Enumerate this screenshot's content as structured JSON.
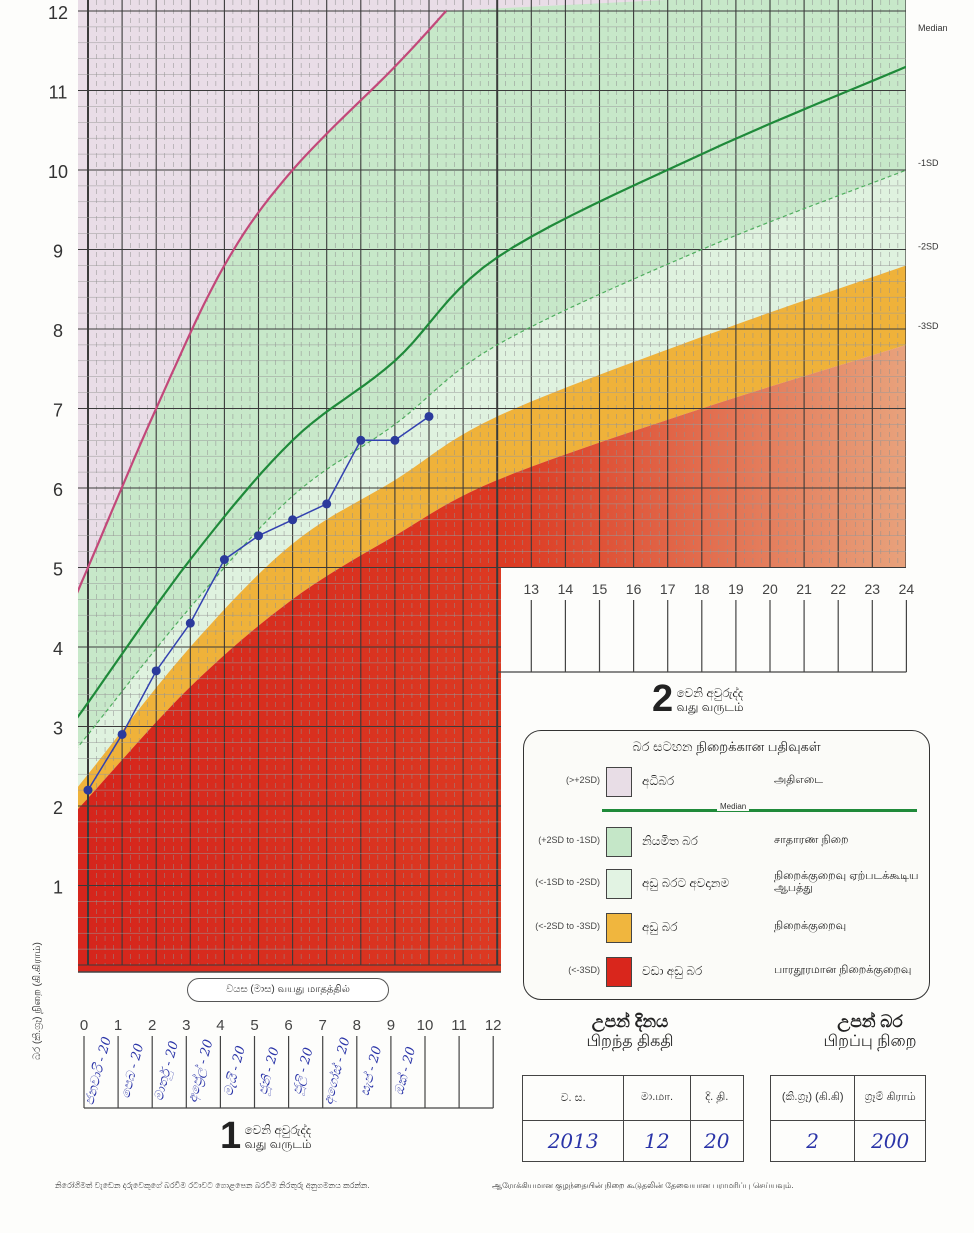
{
  "chart_data": {
    "type": "line",
    "x_unit_label": "වයස (මාස) வயது மாதத்தில்",
    "ylabel": "බර (කි.ග්‍රෑ) நிறை (கி.கிராம்)",
    "ylim": [
      0,
      12
    ],
    "xlim": [
      0,
      24
    ],
    "y_ticks": [
      "1",
      "2",
      "3",
      "4",
      "5",
      "6",
      "7",
      "8",
      "9",
      "10",
      "11",
      "12"
    ],
    "x_ticks_year1": [
      "0",
      "1",
      "2",
      "3",
      "4",
      "5",
      "6",
      "7",
      "8",
      "9",
      "10",
      "11",
      "12"
    ],
    "x_ticks_year2": [
      "13",
      "14",
      "15",
      "16",
      "17",
      "18",
      "19",
      "20",
      "21",
      "22",
      "23",
      "24"
    ],
    "right_labels": [
      "Median",
      "-1SD",
      "-2SD",
      "-3SD"
    ],
    "series": [
      {
        "name": "Median",
        "values": [
          {
            "x": 0,
            "y": 3.3
          },
          {
            "x": 3,
            "y": 5.1
          },
          {
            "x": 6,
            "y": 6.6
          },
          {
            "x": 9,
            "y": 7.6
          },
          {
            "x": 12,
            "y": 8.9
          },
          {
            "x": 18,
            "y": 10.2
          },
          {
            "x": 24,
            "y": 11.3
          }
        ]
      },
      {
        "name": "-1SD",
        "values": [
          {
            "x": 0,
            "y": 2.9
          },
          {
            "x": 3,
            "y": 4.5
          },
          {
            "x": 6,
            "y": 5.9
          },
          {
            "x": 9,
            "y": 6.8
          },
          {
            "x": 12,
            "y": 7.8
          },
          {
            "x": 18,
            "y": 9.0
          },
          {
            "x": 24,
            "y": 10.0
          }
        ]
      },
      {
        "name": "-2SD",
        "values": [
          {
            "x": 0,
            "y": 2.4
          },
          {
            "x": 3,
            "y": 4.0
          },
          {
            "x": 6,
            "y": 5.3
          },
          {
            "x": 9,
            "y": 6.1
          },
          {
            "x": 12,
            "y": 6.9
          },
          {
            "x": 18,
            "y": 7.9
          },
          {
            "x": 24,
            "y": 8.8
          }
        ]
      },
      {
        "name": "-3SD",
        "values": [
          {
            "x": 0,
            "y": 2.1
          },
          {
            "x": 3,
            "y": 3.5
          },
          {
            "x": 6,
            "y": 4.6
          },
          {
            "x": 9,
            "y": 5.4
          },
          {
            "x": 12,
            "y": 6.1
          },
          {
            "x": 18,
            "y": 7.0
          },
          {
            "x": 24,
            "y": 7.8
          }
        ]
      },
      {
        "name": "+2SD",
        "values": [
          {
            "x": 0,
            "y": 5.0
          },
          {
            "x": 2,
            "y": 7.0
          },
          {
            "x": 4,
            "y": 8.8
          },
          {
            "x": 6,
            "y": 10.0
          },
          {
            "x": 9,
            "y": 11.3
          },
          {
            "x": 10.5,
            "y": 12.0
          }
        ]
      },
      {
        "name": "child",
        "values": [
          {
            "x": 0,
            "y": 2.2
          },
          {
            "x": 1,
            "y": 2.9
          },
          {
            "x": 2,
            "y": 3.7
          },
          {
            "x": 3,
            "y": 4.3
          },
          {
            "x": 4,
            "y": 5.1
          },
          {
            "x": 5,
            "y": 5.4
          },
          {
            "x": 6,
            "y": 5.6
          },
          {
            "x": 7,
            "y": 5.8
          },
          {
            "x": 8,
            "y": 6.6
          },
          {
            "x": 9,
            "y": 6.6
          },
          {
            "x": 10,
            "y": 6.9
          }
        ]
      }
    ],
    "handwritten_month_labels": [
      "ජනවාරි - 20",
      "පෙබ - 20",
      "මාර්තු - 20",
      "අප්‍රේල් - 20",
      "මැයි - 20",
      "ජූනි - 20",
      "ජූලි - 20",
      "අගෝස් - 20",
      "සැප් - 20",
      "ඔක් - 20"
    ]
  },
  "legend": {
    "title": "බර සටහන  நிறைக்கான பதிவுகள்",
    "median_label": "Median",
    "rows": [
      {
        "code": "(>+2SD)",
        "si": "අධිබර",
        "ta": "அதிஎடை",
        "color": "#e8dde6"
      },
      {
        "code": "(+2SD to -1SD)",
        "si": "නියමිත බර",
        "ta": "சாதாரண நிறை",
        "color": "#c5e7c8"
      },
      {
        "code": "(<-1SD to -2SD)",
        "si": "අඩු බරට අවදානම",
        "ta": "நிறைக்குறைவு ஏற்படக்கூடிய ஆபத்து",
        "color": "#e2f3e3"
      },
      {
        "code": "(<-2SD to -3SD)",
        "si": "අඩු බර",
        "ta": "நிறைக்குறைவு",
        "color": "#f0b63e"
      },
      {
        "code": "(<-3SD)",
        "si": "වඩා අඩු බර",
        "ta": "பாரதூரமான நிறைக்குறைவு",
        "color": "#d9261c"
      }
    ]
  },
  "year1": {
    "num": "1",
    "si": "වෙනි අවුරුද්ද",
    "ta": "வது வருடம்"
  },
  "year2": {
    "num": "2",
    "si": "වෙනි අවුරුද්ද",
    "ta": "வது வருடம்"
  },
  "birth_date": {
    "title_si": "උපන් දිනය",
    "title_ta": "பிறந்த திகதி",
    "headers": [
      "ව. ස.",
      "මා.மா.",
      "දි. தி."
    ],
    "values": [
      "2013",
      "12",
      "20"
    ]
  },
  "birth_weight": {
    "title_si": "උපන් බර",
    "title_ta": "பிறப்பு நிறை",
    "headers": [
      "(කි.ග්‍රෑ) (கி.கி)",
      "ග්‍රෑම් கிராம்"
    ],
    "values": [
      "2",
      "200"
    ]
  },
  "notes": {
    "si": "නිරෝගිමත් වැඩෙන දරුවෙකුගේ බරවිම රටාවට ගොළපෙන බරවීම නිරතුරු අනුගමනය කරන්න.",
    "ta": "ஆரோக்கியமான குழந்தையின் நிறை கூடுதலின் தேவையான பராமரிப்பு செய்யவும்."
  }
}
